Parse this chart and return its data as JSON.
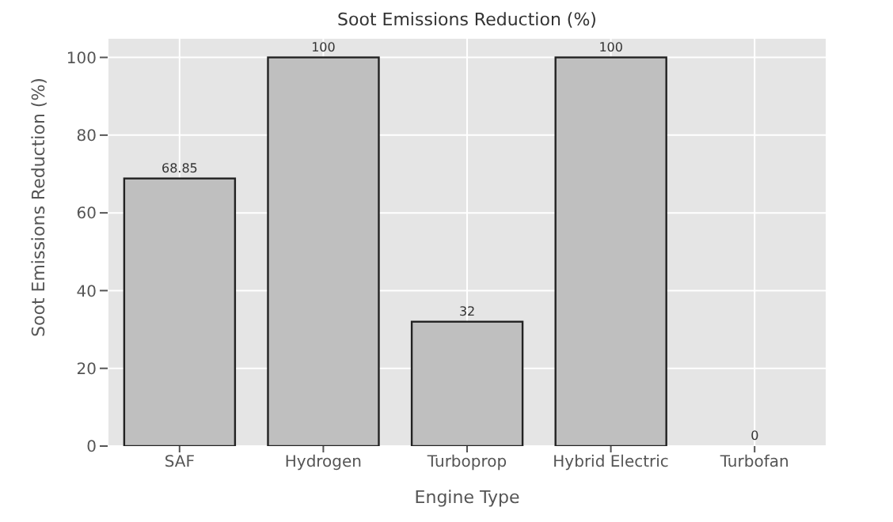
{
  "chart_data": {
    "type": "bar",
    "title": "Soot Emissions Reduction (%)",
    "xlabel": "Engine Type",
    "ylabel": "Soot Emissions Reduction (%)",
    "categories": [
      "SAF",
      "Hydrogen",
      "Turboprop",
      "Hybrid Electric",
      "Turbofan"
    ],
    "values": [
      68.85,
      100,
      32,
      100,
      0
    ],
    "color": "#bfbfbf",
    "ylim": [
      0,
      105
    ],
    "yticks": [
      0,
      20,
      40,
      60,
      80,
      100
    ],
    "grid": true,
    "data_labels": true
  }
}
